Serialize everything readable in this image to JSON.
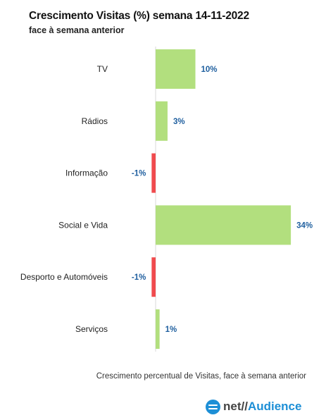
{
  "chart_data": {
    "type": "bar",
    "orientation": "horizontal",
    "title": "Crescimento Visitas (%) semana 14-11-2022",
    "subtitle": "face à semana anterior",
    "categories": [
      "TV",
      "Rádios",
      "Informação",
      "Social e Vida",
      "Desporto e Automóveis",
      "Serviços"
    ],
    "values": [
      10,
      3,
      -1,
      34,
      -1,
      1
    ],
    "value_labels": [
      "10%",
      "3%",
      "-1%",
      "34%",
      "-1%",
      "1%"
    ],
    "xlim": [
      -1.5,
      34
    ],
    "grid": false,
    "legend": "none",
    "colors": {
      "positive": "#b2df7e",
      "negative": "#f04b4e",
      "label": "#1f5f9f"
    }
  },
  "footnote": "Crescimento percentual de Visitas, face à semana anterior",
  "logo": {
    "icon": "netaudience-logo-icon",
    "net": "net//",
    "audience": "Audience"
  }
}
